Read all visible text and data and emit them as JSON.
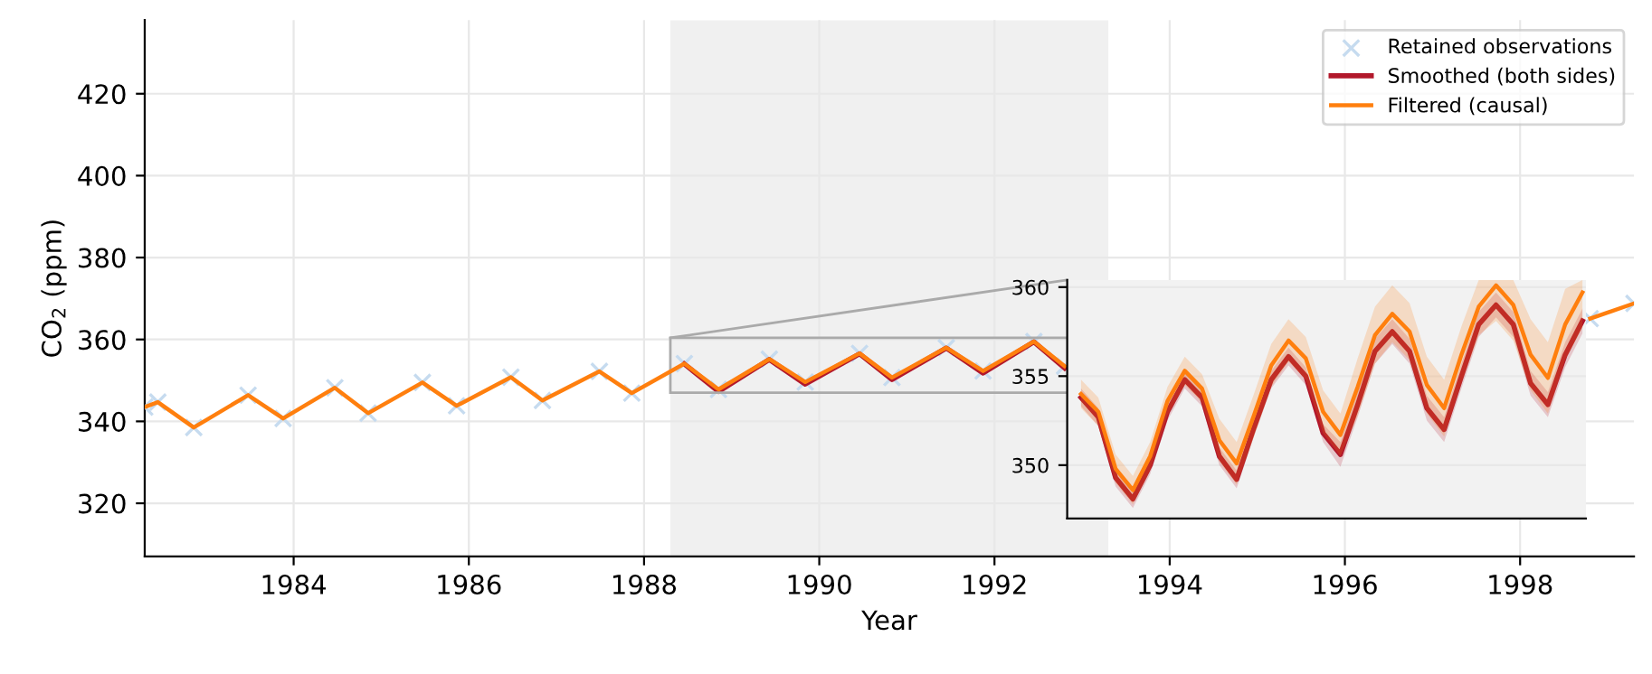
{
  "chart_data": [
    {
      "type": "line",
      "xlabel": "Year",
      "ylabel": "CO$_{2}$ (ppm)",
      "xlim": [
        1982.3,
        1999.3
      ],
      "ylim": [
        307,
        438
      ],
      "xticks": [
        1984,
        1986,
        1988,
        1990,
        1992,
        1994,
        1996,
        1998
      ],
      "yticks": [
        320,
        340,
        360,
        380,
        400,
        420
      ],
      "grid": true,
      "legend": "top right",
      "x": [
        1982.3,
        1982.45,
        1982.86,
        1983.48,
        1983.88,
        1984.47,
        1984.85,
        1985.47,
        1985.86,
        1986.48,
        1986.84,
        1987.49,
        1987.86,
        1988.46,
        1988.85,
        1989.43,
        1989.84,
        1990.46,
        1990.83,
        1991.45,
        1991.87,
        1992.45,
        1992.8,
        1995.8,
        1998.8,
        1999.3
      ],
      "bands": [
        {
          "axis": "x",
          "from": 1988.3,
          "to": 1993.3,
          "color": "#f0f0f0"
        }
      ],
      "series": [
        {
          "name": "Retained observations",
          "type": "scatter",
          "marker": "cross",
          "color": "#c6dbef",
          "values": [
            343.5,
            344.7,
            338.5,
            346.4,
            340.7,
            348.2,
            342.0,
            349.5,
            343.8,
            350.8,
            345.1,
            352.2,
            346.9,
            354.1,
            347.8,
            355.2,
            349.6,
            356.6,
            350.7,
            358.0,
            352.3,
            359.5,
            353.5,
            null,
            365.1,
            368.8
          ]
        },
        {
          "name": "Smoothed (both sides)",
          "color": "#b2182b",
          "values": [
            null,
            null,
            null,
            null,
            null,
            null,
            null,
            null,
            null,
            null,
            null,
            null,
            null,
            354.0,
            347.3,
            355.1,
            349.1,
            356.5,
            350.2,
            357.9,
            351.8,
            359.4,
            353.0,
            null,
            null,
            null
          ]
        },
        {
          "name": "Filtered (causal)",
          "color": "#ff7f0e",
          "values": [
            343.5,
            344.7,
            338.5,
            346.4,
            340.7,
            348.2,
            342.0,
            349.5,
            343.8,
            350.8,
            345.1,
            352.2,
            346.9,
            354.1,
            347.8,
            355.2,
            349.6,
            356.6,
            350.7,
            358.0,
            352.3,
            359.5,
            353.5,
            null,
            365.1,
            368.8
          ]
        }
      ]
    },
    {
      "type": "line",
      "ylim": [
        347,
        360.4
      ],
      "yticks": [
        350,
        355,
        360
      ],
      "grid": "y",
      "tick_labels": "y",
      "categories": [
        null,
        null,
        null,
        null,
        null,
        null,
        null,
        null,
        null,
        null,
        null,
        null,
        null,
        null,
        null,
        null,
        null,
        null,
        null,
        null,
        null,
        null,
        null,
        null,
        null,
        null,
        null,
        null,
        null,
        null
      ],
      "series": [
        {
          "color": "#b2182b",
          "values": [
            353.8,
            352.7,
            349.3,
            348.1,
            350.0,
            353.0,
            354.8,
            353.8,
            350.5,
            349.2,
            352.1,
            354.8,
            356.1,
            355.0,
            351.8,
            350.6,
            353.4,
            356.4,
            357.5,
            356.4,
            353.2,
            352.0,
            355.0,
            357.9,
            359.0,
            357.9,
            354.6,
            353.4,
            356.2,
            358.1
          ],
          "lower": [
            353.3,
            352.2,
            348.8,
            347.6,
            349.5,
            352.5,
            354.3,
            353.3,
            350.0,
            348.7,
            351.6,
            354.3,
            355.6,
            354.5,
            351.3,
            349.9,
            352.7,
            355.7,
            356.8,
            355.7,
            352.5,
            351.3,
            354.3,
            357.2,
            358.3,
            357.2,
            353.9,
            352.7,
            355.5,
            357.4
          ],
          "upper": [
            354.3,
            353.2,
            349.8,
            348.6,
            350.5,
            353.5,
            355.3,
            354.3,
            351.0,
            349.7,
            352.6,
            355.3,
            356.6,
            355.5,
            352.3,
            351.3,
            354.1,
            357.1,
            358.2,
            357.1,
            353.9,
            352.7,
            355.7,
            358.6,
            359.7,
            358.6,
            355.3,
            354.1,
            356.9,
            358.8
          ]
        },
        {
          "color": "#ff7f0e",
          "values": [
            354.0,
            353.0,
            349.8,
            348.6,
            350.5,
            353.6,
            355.3,
            354.3,
            351.4,
            350.1,
            352.8,
            355.6,
            357.0,
            356.0,
            353.0,
            351.7,
            354.4,
            357.3,
            358.5,
            357.5,
            354.5,
            353.2,
            356.2,
            358.9,
            360.1,
            359.0,
            356.2,
            354.9,
            357.9,
            359.7
          ],
          "lower": [
            353.2,
            352.2,
            349.0,
            347.8,
            349.7,
            352.8,
            354.5,
            353.5,
            350.2,
            348.9,
            351.6,
            354.4,
            355.8,
            354.8,
            351.8,
            350.5,
            352.8,
            355.7,
            356.9,
            355.9,
            352.9,
            351.6,
            354.6,
            357.3,
            358.1,
            357.0,
            354.2,
            352.9,
            355.9,
            357.7
          ],
          "upper": [
            354.8,
            353.8,
            350.6,
            349.4,
            351.3,
            354.4,
            356.1,
            355.1,
            352.6,
            351.3,
            354.0,
            356.8,
            358.2,
            357.2,
            354.2,
            352.9,
            356.0,
            358.9,
            360.1,
            359.1,
            356.1,
            354.8,
            357.8,
            360.4,
            360.4,
            360.4,
            358.2,
            356.9,
            359.9,
            360.4
          ]
        }
      ]
    }
  ]
}
